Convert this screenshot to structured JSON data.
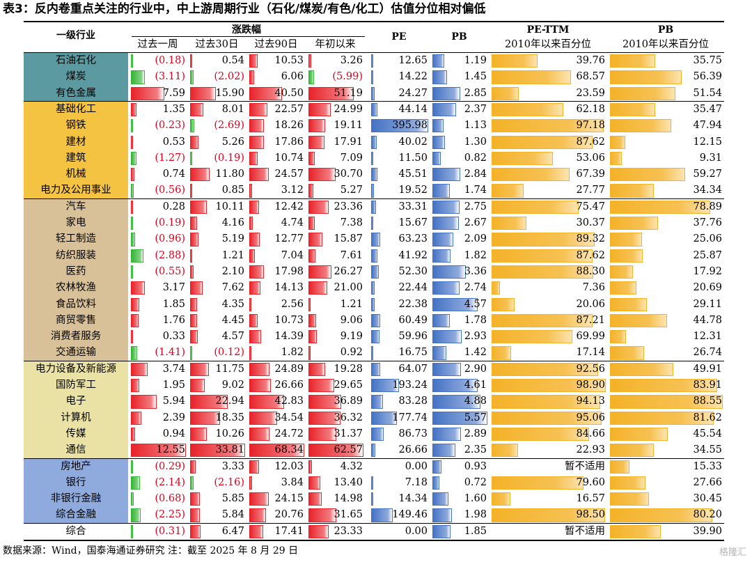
{
  "title": "表3：反内卷重点关注的行业中，中上游周期行业（石化/煤炭/有色/化工）估值分位相对偏低",
  "headers": {
    "industry": "一级行业",
    "change_group": "涨跌幅",
    "w1": "过去一周",
    "d30": "过去30日",
    "d90": "过去90日",
    "ytd": "年初以来",
    "pe": "PE",
    "pb": "PB",
    "pe_pct_line1": "PE-TTM",
    "pe_pct_line2": "2010年以来百分位",
    "pb_pct_line1": "PB",
    "pb_pct_line2": "2010年以来百分位"
  },
  "group_colors": [
    "#5b9aa0",
    "#f5c342",
    "#d8c198",
    "#eae2a5",
    "#8faadc",
    "#ffffff"
  ],
  "bar_colors": {
    "pos": "#e8232a",
    "neg": "#35b535",
    "pe": "#4472c4",
    "pct": "#f4b228"
  },
  "rows": [
    {
      "group": 0,
      "name": "石油石化",
      "w1": "(0.18)",
      "d30": "0.54",
      "d90": "10.53",
      "ytd": "3.26",
      "pe": "12.65",
      "pb": "1.19",
      "pe_pct": "39.76",
      "pb_pct": "35.75"
    },
    {
      "group": 0,
      "name": "煤炭",
      "w1": "(3.11)",
      "d30": "(2.02)",
      "d90": "6.06",
      "ytd": "(5.99)",
      "pe": "14.22",
      "pb": "1.45",
      "pe_pct": "68.57",
      "pb_pct": "56.39"
    },
    {
      "group": 0,
      "name": "有色金属",
      "w1": "7.59",
      "d30": "15.90",
      "d90": "40.50",
      "ytd": "51.19",
      "pe": "24.27",
      "pb": "2.85",
      "pe_pct": "23.59",
      "pb_pct": "51.54"
    },
    {
      "group": 1,
      "name": "基础化工",
      "w1": "1.35",
      "d30": "8.01",
      "d90": "22.57",
      "ytd": "24.99",
      "pe": "44.14",
      "pb": "2.37",
      "pe_pct": "62.18",
      "pb_pct": "35.47"
    },
    {
      "group": 1,
      "name": "钢铁",
      "w1": "(0.23)",
      "d30": "(2.69)",
      "d90": "18.26",
      "ytd": "19.11",
      "pe": "395.98",
      "pb": "1.13",
      "pe_pct": "97.18",
      "pb_pct": "47.94"
    },
    {
      "group": 1,
      "name": "建材",
      "w1": "0.53",
      "d30": "5.26",
      "d90": "17.86",
      "ytd": "17.91",
      "pe": "40.02",
      "pb": "1.30",
      "pe_pct": "87.62",
      "pb_pct": "12.15"
    },
    {
      "group": 1,
      "name": "建筑",
      "w1": "(1.27)",
      "d30": "(0.19)",
      "d90": "10.74",
      "ytd": "7.09",
      "pe": "11.50",
      "pb": "0.82",
      "pe_pct": "53.06",
      "pb_pct": "9.31"
    },
    {
      "group": 1,
      "name": "机械",
      "w1": "0.74",
      "d30": "11.80",
      "d90": "24.57",
      "ytd": "30.70",
      "pe": "45.51",
      "pb": "2.84",
      "pe_pct": "67.39",
      "pb_pct": "59.27"
    },
    {
      "group": 1,
      "name": "电力及公用事业",
      "w1": "(0.56)",
      "d30": "0.85",
      "d90": "3.12",
      "ytd": "5.27",
      "pe": "19.52",
      "pb": "1.74",
      "pe_pct": "27.77",
      "pb_pct": "34.34"
    },
    {
      "group": 2,
      "name": "汽车",
      "w1": "0.28",
      "d30": "10.11",
      "d90": "12.42",
      "ytd": "23.36",
      "pe": "33.31",
      "pb": "2.75",
      "pe_pct": "75.47",
      "pb_pct": "78.89"
    },
    {
      "group": 2,
      "name": "家电",
      "w1": "(0.19)",
      "d30": "4.16",
      "d90": "4.74",
      "ytd": "7.38",
      "pe": "15.67",
      "pb": "2.67",
      "pe_pct": "30.37",
      "pb_pct": "37.76"
    },
    {
      "group": 2,
      "name": "轻工制造",
      "w1": "(0.96)",
      "d30": "5.19",
      "d90": "12.77",
      "ytd": "15.87",
      "pe": "63.23",
      "pb": "2.09",
      "pe_pct": "89.32",
      "pb_pct": "25.06"
    },
    {
      "group": 2,
      "name": "纺织服装",
      "w1": "(2.88)",
      "d30": "1.21",
      "d90": "7.04",
      "ytd": "7.61",
      "pe": "41.92",
      "pb": "1.82",
      "pe_pct": "87.62",
      "pb_pct": "25.87"
    },
    {
      "group": 2,
      "name": "医药",
      "w1": "(0.55)",
      "d30": "2.10",
      "d90": "17.98",
      "ytd": "26.27",
      "pe": "52.30",
      "pb": "3.36",
      "pe_pct": "88.30",
      "pb_pct": "17.92"
    },
    {
      "group": 2,
      "name": "农林牧渔",
      "w1": "3.17",
      "d30": "7.62",
      "d90": "14.13",
      "ytd": "21.00",
      "pe": "22.44",
      "pb": "2.74",
      "pe_pct": "7.36",
      "pb_pct": "20.69"
    },
    {
      "group": 2,
      "name": "食品饮料",
      "w1": "1.85",
      "d30": "4.35",
      "d90": "2.56",
      "ytd": "1.21",
      "pe": "22.38",
      "pb": "4.57",
      "pe_pct": "20.06",
      "pb_pct": "29.11"
    },
    {
      "group": 2,
      "name": "商贸零售",
      "w1": "1.76",
      "d30": "4.45",
      "d90": "10.73",
      "ytd": "9.06",
      "pe": "60.49",
      "pb": "1.78",
      "pe_pct": "87.21",
      "pb_pct": "44.78"
    },
    {
      "group": 2,
      "name": "消费者服务",
      "w1": "0.33",
      "d30": "4.57",
      "d90": "14.39",
      "ytd": "9.19",
      "pe": "59.96",
      "pb": "2.93",
      "pe_pct": "69.99",
      "pb_pct": "12.31"
    },
    {
      "group": 2,
      "name": "交通运输",
      "w1": "(1.41)",
      "d30": "(0.12)",
      "d90": "1.82",
      "ytd": "0.92",
      "pe": "16.75",
      "pb": "1.42",
      "pe_pct": "17.14",
      "pb_pct": "26.74"
    },
    {
      "group": 3,
      "name": "电力设备及新能源",
      "w1": "3.74",
      "d30": "11.75",
      "d90": "24.89",
      "ytd": "19.28",
      "pe": "64.07",
      "pb": "2.90",
      "pe_pct": "92.56",
      "pb_pct": "49.91"
    },
    {
      "group": 3,
      "name": "国防军工",
      "w1": "1.95",
      "d30": "9.02",
      "d90": "26.66",
      "ytd": "29.65",
      "pe": "193.24",
      "pb": "4.61",
      "pe_pct": "98.90",
      "pb_pct": "83.91"
    },
    {
      "group": 3,
      "name": "电子",
      "w1": "5.94",
      "d30": "22.94",
      "d90": "42.83",
      "ytd": "36.89",
      "pe": "83.28",
      "pb": "4.88",
      "pe_pct": "94.13",
      "pb_pct": "88.55"
    },
    {
      "group": 3,
      "name": "计算机",
      "w1": "2.39",
      "d30": "18.35",
      "d90": "34.54",
      "ytd": "36.32",
      "pe": "177.74",
      "pb": "5.57",
      "pe_pct": "95.06",
      "pb_pct": "81.62"
    },
    {
      "group": 3,
      "name": "传媒",
      "w1": "0.94",
      "d30": "10.26",
      "d90": "24.72",
      "ytd": "31.37",
      "pe": "86.73",
      "pb": "2.89",
      "pe_pct": "84.66",
      "pb_pct": "45.54"
    },
    {
      "group": 3,
      "name": "通信",
      "w1": "12.55",
      "d30": "33.81",
      "d90": "68.34",
      "ytd": "62.57",
      "pe": "26.66",
      "pb": "2.35",
      "pe_pct": "22.93",
      "pb_pct": "34.55"
    },
    {
      "group": 4,
      "name": "房地产",
      "w1": "(0.29)",
      "d30": "3.33",
      "d90": "12.03",
      "ytd": "4.32",
      "pe": "0.00",
      "pb": "0.93",
      "pe_pct": "暂不适用",
      "pb_pct": "15.33"
    },
    {
      "group": 4,
      "name": "银行",
      "w1": "(2.14)",
      "d30": "(2.16)",
      "d90": "3.84",
      "ytd": "13.40",
      "pe": "7.18",
      "pb": "0.72",
      "pe_pct": "79.60",
      "pb_pct": "27.66"
    },
    {
      "group": 4,
      "name": "非银行金融",
      "w1": "(0.68)",
      "d30": "5.85",
      "d90": "24.15",
      "ytd": "14.98",
      "pe": "14.34",
      "pb": "1.60",
      "pe_pct": "16.57",
      "pb_pct": "30.45"
    },
    {
      "group": 4,
      "name": "综合金融",
      "w1": "(2.25)",
      "d30": "5.84",
      "d90": "20.76",
      "ytd": "31.65",
      "pe": "149.46",
      "pb": "1.98",
      "pe_pct": "98.50",
      "pb_pct": "80.20"
    },
    {
      "group": 5,
      "name": "综合",
      "w1": "(0.31)",
      "d30": "6.47",
      "d90": "17.41",
      "ytd": "23.33",
      "pe": "0.00",
      "pb": "1.85",
      "pe_pct": "暂不适用",
      "pb_pct": "39.90"
    }
  ],
  "footer": "数据来源：Wind，国泰海通证券研究 注：截至 2025 年 8 月 29 日",
  "watermark": "格隆汇"
}
